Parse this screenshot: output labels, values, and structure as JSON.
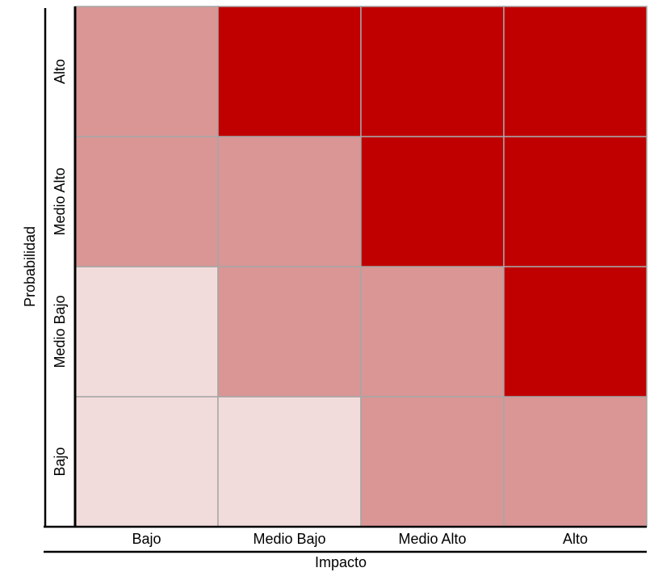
{
  "chart_data": {
    "type": "heatmap",
    "title": "",
    "xlabel": "Impacto",
    "ylabel": "Probabilidad",
    "x_categories": [
      "Bajo",
      "Medio Bajo",
      "Medio Alto",
      "Alto"
    ],
    "y_categories": [
      "Bajo",
      "Medio Bajo",
      "Medio Alto",
      "Alto"
    ],
    "levels": [
      1,
      2,
      3
    ],
    "level_colors": {
      "1": "#f2dcdb",
      "2": "#d99694",
      "3": "#c00000"
    },
    "grid_line_color": "#a6a6a6",
    "cells": [
      {
        "x": "Bajo",
        "y": "Bajo",
        "level": 1
      },
      {
        "x": "Medio Bajo",
        "y": "Bajo",
        "level": 1
      },
      {
        "x": "Medio Alto",
        "y": "Bajo",
        "level": 2
      },
      {
        "x": "Alto",
        "y": "Bajo",
        "level": 2
      },
      {
        "x": "Bajo",
        "y": "Medio Bajo",
        "level": 1
      },
      {
        "x": "Medio Bajo",
        "y": "Medio Bajo",
        "level": 2
      },
      {
        "x": "Medio Alto",
        "y": "Medio Bajo",
        "level": 2
      },
      {
        "x": "Alto",
        "y": "Medio Bajo",
        "level": 3
      },
      {
        "x": "Bajo",
        "y": "Medio Alto",
        "level": 2
      },
      {
        "x": "Medio Bajo",
        "y": "Medio Alto",
        "level": 2
      },
      {
        "x": "Medio Alto",
        "y": "Medio Alto",
        "level": 3
      },
      {
        "x": "Alto",
        "y": "Medio Alto",
        "level": 3
      },
      {
        "x": "Bajo",
        "y": "Alto",
        "level": 2
      },
      {
        "x": "Medio Bajo",
        "y": "Alto",
        "level": 3
      },
      {
        "x": "Medio Alto",
        "y": "Alto",
        "level": 3
      },
      {
        "x": "Alto",
        "y": "Alto",
        "level": 3
      }
    ]
  }
}
